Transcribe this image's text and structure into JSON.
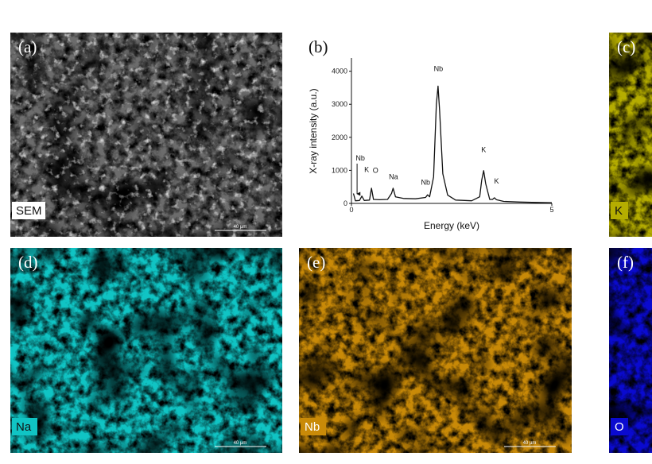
{
  "panels": [
    {
      "label": "(a)",
      "tag": "SEM",
      "scale": "40 µm",
      "color": "#6c6c6c"
    },
    {
      "label": "(b)"
    },
    {
      "label": "(c)",
      "tag": "K",
      "color": "#b5ad00"
    },
    {
      "label": "(d)",
      "tag": "Na",
      "scale": "40 µm",
      "color": "#10c4c4"
    },
    {
      "label": "(e)",
      "tag": "Nb",
      "scale": "40 µm",
      "color": "#c98a08"
    },
    {
      "label": "(f)",
      "tag": "O",
      "color": "#0a0ad0"
    }
  ],
  "chart_data": {
    "type": "line",
    "xlabel": "Energy (keV)",
    "ylabel": "X-ray intensity (a.u.)",
    "xlim": [
      0,
      5
    ],
    "ylim": [
      0,
      4400
    ],
    "xticks": [
      0,
      5
    ],
    "yticks": [
      0,
      1000,
      2000,
      3000,
      4000
    ],
    "x": [
      0.05,
      0.1,
      0.2,
      0.26,
      0.32,
      0.45,
      0.5,
      0.55,
      0.7,
      0.9,
      1.0,
      1.04,
      1.1,
      1.3,
      1.6,
      1.85,
      1.9,
      1.95,
      2.05,
      2.12,
      2.16,
      2.2,
      2.28,
      2.4,
      2.6,
      3.0,
      3.2,
      3.25,
      3.3,
      3.35,
      3.45,
      3.52,
      3.57,
      3.62,
      3.8,
      4.2,
      4.6,
      5.0
    ],
    "series": [
      {
        "color": "#111111",
        "values": [
          300,
          80,
          90,
          220,
          90,
          100,
          460,
          120,
          110,
          120,
          300,
          460,
          200,
          150,
          140,
          180,
          260,
          200,
          800,
          3000,
          3550,
          2800,
          900,
          250,
          100,
          80,
          200,
          700,
          990,
          600,
          120,
          120,
          170,
          110,
          60,
          40,
          30,
          20
        ]
      }
    ],
    "annotations": [
      {
        "text": "Nb",
        "x": 0.22,
        "y": 1300
      },
      {
        "text": "K",
        "x": 0.38,
        "y": 950
      },
      {
        "text": "O",
        "x": 0.6,
        "y": 930
      },
      {
        "text": "Na",
        "x": 1.05,
        "y": 730
      },
      {
        "text": "Nb",
        "x": 1.85,
        "y": 560
      },
      {
        "text": "Nb",
        "x": 2.17,
        "y": 4000
      },
      {
        "text": "K",
        "x": 3.3,
        "y": 1550
      },
      {
        "text": "K",
        "x": 3.62,
        "y": 600
      }
    ]
  }
}
